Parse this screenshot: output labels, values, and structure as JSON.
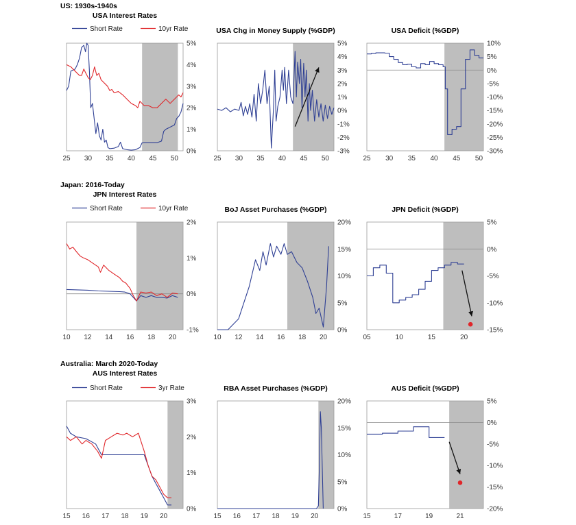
{
  "colors": {
    "short": "#2e3f94",
    "long": "#e0262a",
    "shade": "#bebebe",
    "frame": "#9a9a9a",
    "arrow": "#111111",
    "dot": "#e0262a"
  },
  "sections": [
    {
      "title": "US: 1930s-1940s"
    },
    {
      "title": "Japan: 2016-Today"
    },
    {
      "title": "Australia: March 2020-Today"
    }
  ],
  "chart_data": [
    {
      "type": "line",
      "title": "USA Interest Rates",
      "xlim": [
        25,
        52
      ],
      "ylim": [
        0,
        5
      ],
      "xticks": [
        25,
        30,
        35,
        40,
        45,
        50
      ],
      "xtick_labels": [
        "25",
        "30",
        "35",
        "40",
        "45",
        "50"
      ],
      "yticks": [
        0,
        1,
        2,
        3,
        4,
        5
      ],
      "ytick_labels": [
        "0%",
        "1%",
        "2%",
        "3%",
        "4%",
        "5%"
      ],
      "shade": [
        42.5,
        50.8
      ],
      "series": [
        {
          "name": "Short Rate",
          "color": "short",
          "x": [
            25,
            25.5,
            26,
            27,
            27.5,
            28,
            28.5,
            29,
            29.4,
            29.7,
            30,
            30.3,
            30.6,
            31,
            31.4,
            31.8,
            32.2,
            32.6,
            33,
            33.4,
            33.8,
            34.2,
            34.6,
            35,
            36,
            37,
            37.5,
            38,
            39,
            40,
            41,
            42,
            42.5,
            43,
            44,
            45,
            46,
            47,
            47.5,
            48,
            49,
            50,
            50.5,
            51,
            51.5,
            52
          ],
          "y": [
            2.8,
            3.0,
            3.7,
            3.8,
            4.0,
            4.3,
            4.8,
            4.9,
            4.6,
            5.0,
            4.9,
            3.7,
            2.0,
            2.2,
            1.5,
            0.8,
            1.3,
            0.7,
            0.5,
            1.0,
            0.4,
            0.5,
            0.15,
            0.1,
            0.12,
            0.2,
            0.4,
            0.1,
            0.05,
            0.03,
            0.05,
            0.15,
            0.37,
            0.38,
            0.38,
            0.38,
            0.38,
            0.45,
            0.9,
            1.0,
            1.1,
            1.2,
            1.5,
            1.6,
            1.8,
            2.2
          ]
        },
        {
          "name": "10yr Rate",
          "color": "long",
          "x": [
            25,
            26,
            27,
            28,
            28.5,
            29,
            29.5,
            30,
            30.5,
            31,
            31.5,
            32,
            32.5,
            33,
            33.5,
            34,
            34.5,
            35,
            35.5,
            36,
            37,
            38,
            39,
            40,
            41,
            41.5,
            42,
            43,
            44,
            45,
            46,
            47,
            48,
            49,
            50,
            50.5,
            51,
            51.5,
            52
          ],
          "y": [
            4.0,
            3.9,
            3.7,
            3.5,
            3.5,
            3.8,
            3.6,
            3.4,
            3.3,
            3.5,
            3.9,
            3.5,
            3.6,
            3.3,
            3.2,
            3.1,
            3.0,
            2.8,
            2.85,
            2.7,
            2.75,
            2.6,
            2.4,
            2.2,
            2.1,
            2.0,
            2.3,
            2.1,
            2.1,
            2.0,
            2.0,
            2.2,
            2.4,
            2.2,
            2.4,
            2.5,
            2.6,
            2.5,
            2.7
          ]
        }
      ]
    },
    {
      "type": "line",
      "title": "USA Chg in Money Supply (%GDP)",
      "xlim": [
        25,
        52
      ],
      "ylim": [
        -3,
        5
      ],
      "xticks": [
        25,
        30,
        35,
        40,
        45,
        50
      ],
      "xtick_labels": [
        "25",
        "30",
        "35",
        "40",
        "45",
        "50"
      ],
      "yticks": [
        -3,
        -2,
        -1,
        0,
        1,
        2,
        3,
        4,
        5
      ],
      "ytick_labels": [
        "-3%",
        "-2%",
        "-1%",
        "0%",
        "1%",
        "2%",
        "3%",
        "4%",
        "5%"
      ],
      "shade": [
        42.5,
        52
      ],
      "series": [
        {
          "name": "",
          "color": "short",
          "x": [
            25,
            26,
            27,
            28,
            29,
            30,
            30.5,
            31,
            31.5,
            32,
            32.5,
            33,
            33.5,
            34,
            34.5,
            35,
            35.5,
            36,
            36.5,
            37,
            37.5,
            38,
            38.3,
            38.6,
            39,
            39.5,
            40,
            40.3,
            40.6,
            41,
            41.5,
            42,
            42.5,
            43,
            43.3,
            43.6,
            44,
            44.3,
            44.6,
            45,
            45.3,
            45.6,
            46,
            46.3,
            46.6,
            47,
            47.5,
            48,
            48.5,
            49,
            49.5,
            50,
            50.5,
            51,
            51.5,
            52
          ],
          "y": [
            0.1,
            0.0,
            0.2,
            -0.1,
            0.1,
            0.0,
            0.6,
            -0.4,
            0.3,
            -0.3,
            0.5,
            -0.5,
            1.2,
            -0.8,
            2.0,
            0.5,
            1.5,
            3.0,
            0.5,
            1.8,
            -2.8,
            0.2,
            3.0,
            -0.8,
            0.3,
            1.0,
            3.0,
            1.5,
            3.2,
            0.5,
            3.0,
            1.0,
            0.5,
            4.4,
            1.0,
            3.6,
            2.0,
            3.8,
            0.2,
            3.5,
            1.0,
            3.0,
            -0.8,
            2.0,
            0.0,
            1.5,
            -0.8,
            0.8,
            -0.5,
            0.5,
            -0.8,
            0.4,
            -0.6,
            0.3,
            -0.3,
            0.2
          ]
        }
      ],
      "arrow": {
        "from": [
          43,
          -1.2
        ],
        "to": [
          48.5,
          3.2
        ]
      }
    },
    {
      "type": "line",
      "title": "USA Deficit (%GDP)",
      "xlim": [
        25,
        51
      ],
      "ylim": [
        -30,
        10
      ],
      "xticks": [
        25,
        30,
        35,
        40,
        45,
        50
      ],
      "xtick_labels": [
        "25",
        "30",
        "35",
        "40",
        "45",
        "50"
      ],
      "yticks": [
        -30,
        -25,
        -20,
        -15,
        -10,
        -5,
        0,
        5,
        10
      ],
      "ytick_labels": [
        "-30%",
        "-25%",
        "-20%",
        "-15%",
        "-10%",
        "-5%",
        "0%",
        "5%",
        "10%"
      ],
      "zero_line": true,
      "shade": [
        42.3,
        51
      ],
      "series": [
        {
          "name": "",
          "color": "short",
          "step": true,
          "x": [
            25,
            26,
            27,
            28,
            29,
            30,
            31,
            32,
            33,
            34,
            35,
            36,
            37,
            38,
            39,
            40,
            41,
            42,
            42.5,
            43,
            44,
            45,
            46,
            47,
            48,
            49,
            50,
            51
          ],
          "y": [
            6,
            6.2,
            6.4,
            6.4,
            6.3,
            5.0,
            4.0,
            2.8,
            2.0,
            2.2,
            1.2,
            0.8,
            2.4,
            2.0,
            3.2,
            2.4,
            2.0,
            1.2,
            -7.0,
            -24.0,
            -22.0,
            -21.0,
            -7.0,
            4.0,
            7.5,
            5.5,
            4.5,
            4.5
          ]
        }
      ]
    },
    {
      "type": "line",
      "title": "JPN Interest Rates",
      "xlim": [
        10,
        21
      ],
      "ylim": [
        -1,
        2
      ],
      "xticks": [
        10,
        12,
        14,
        16,
        18,
        20
      ],
      "xtick_labels": [
        "10",
        "12",
        "14",
        "16",
        "18",
        "20"
      ],
      "yticks": [
        -1,
        0,
        1,
        2
      ],
      "ytick_labels": [
        "-1%",
        "0%",
        "1%",
        "2%"
      ],
      "zero_line": true,
      "shade": [
        16.6,
        21
      ],
      "series": [
        {
          "name": "Short Rate",
          "color": "short",
          "x": [
            10,
            11,
            12,
            13,
            14,
            15,
            15.5,
            16,
            16.3,
            16.6,
            17,
            17.5,
            18,
            18.5,
            19,
            19.5,
            20,
            20.5
          ],
          "y": [
            0.12,
            0.11,
            0.1,
            0.08,
            0.07,
            0.06,
            0.05,
            0.0,
            -0.1,
            -0.2,
            -0.05,
            -0.1,
            -0.05,
            -0.1,
            -0.1,
            -0.12,
            -0.05,
            -0.1
          ]
        },
        {
          "name": "10yr Rate",
          "color": "long",
          "x": [
            10,
            10.3,
            10.6,
            11,
            11.3,
            11.6,
            12,
            12.5,
            13,
            13.2,
            13.5,
            14,
            14.5,
            15,
            15.3,
            15.6,
            16,
            16.3,
            16.6,
            17,
            17.5,
            18,
            18.5,
            19,
            19.5,
            20,
            20.5
          ],
          "y": [
            1.4,
            1.25,
            1.3,
            1.15,
            1.05,
            1.0,
            0.95,
            0.85,
            0.75,
            0.6,
            0.8,
            0.65,
            0.55,
            0.45,
            0.35,
            0.3,
            0.15,
            -0.05,
            -0.2,
            0.05,
            0.02,
            0.05,
            -0.05,
            0.0,
            -0.1,
            0.02,
            0.0
          ]
        }
      ]
    },
    {
      "type": "line",
      "title": "BoJ Asset Purchases (%GDP)",
      "xlim": [
        10,
        21
      ],
      "ylim": [
        0,
        20
      ],
      "xticks": [
        10,
        12,
        14,
        16,
        18,
        20
      ],
      "xtick_labels": [
        "10",
        "12",
        "14",
        "16",
        "18",
        "20"
      ],
      "yticks": [
        0,
        5,
        10,
        15,
        20
      ],
      "ytick_labels": [
        "0%",
        "5%",
        "10%",
        "15%",
        "20%"
      ],
      "shade": [
        16.6,
        21
      ],
      "series": [
        {
          "name": "",
          "color": "short",
          "x": [
            10,
            11,
            11.5,
            12,
            12.5,
            13,
            13.3,
            13.6,
            14,
            14.3,
            14.6,
            15,
            15.3,
            15.6,
            16,
            16.3,
            16.6,
            17,
            17.5,
            18,
            18.5,
            19,
            19.3,
            19.6,
            20,
            20.3,
            20.5
          ],
          "y": [
            0,
            0,
            1.0,
            2.0,
            5.0,
            8.0,
            10.5,
            13.0,
            11.0,
            14.5,
            12.0,
            16.0,
            13.5,
            15.5,
            14.0,
            16.0,
            14.0,
            14.5,
            12.5,
            11.5,
            9.0,
            6.0,
            3.0,
            4.0,
            0.5,
            8.0,
            15.5
          ]
        }
      ]
    },
    {
      "type": "line",
      "title": "JPN Deficit (%GDP)",
      "xlim": [
        5,
        23
      ],
      "ylim": [
        -15,
        5
      ],
      "xticks": [
        5,
        10,
        15,
        20
      ],
      "xtick_labels": [
        "05",
        "10",
        "15",
        "20"
      ],
      "yticks": [
        -15,
        -10,
        -5,
        0,
        5
      ],
      "ytick_labels": [
        "-15%",
        "-10%",
        "-5%",
        "0%",
        "5%"
      ],
      "zero_line": true,
      "shade": [
        16.8,
        23
      ],
      "series": [
        {
          "name": "",
          "color": "short",
          "step": true,
          "x": [
            5,
            6,
            7,
            8,
            9,
            10,
            11,
            12,
            13,
            14,
            15,
            16,
            17,
            18,
            19,
            20
          ],
          "y": [
            -5.0,
            -3.5,
            -3.0,
            -4.5,
            -10.0,
            -9.5,
            -9.0,
            -8.5,
            -7.5,
            -6.0,
            -4.0,
            -3.5,
            -3.0,
            -2.5,
            -2.8,
            -2.8
          ]
        }
      ],
      "arrow": {
        "from": [
          19.7,
          -4.0
        ],
        "to": [
          21.2,
          -12.5
        ]
      },
      "point": {
        "x": 21,
        "y": -14
      }
    },
    {
      "type": "line",
      "title": "AUS Interest Rates",
      "xlim": [
        15,
        21
      ],
      "ylim": [
        0,
        3
      ],
      "xticks": [
        15,
        16,
        17,
        18,
        19,
        20
      ],
      "xtick_labels": [
        "15",
        "16",
        "17",
        "18",
        "19",
        "20"
      ],
      "yticks": [
        0,
        1,
        2,
        3
      ],
      "ytick_labels": [
        "0%",
        "1%",
        "2%",
        "3%"
      ],
      "shade": [
        20.2,
        21
      ],
      "series": [
        {
          "name": "Short Rate",
          "color": "short",
          "x": [
            15,
            15.2,
            15.5,
            16,
            16.5,
            16.8,
            17,
            17.5,
            18,
            18.5,
            19,
            19.2,
            19.4,
            19.6,
            19.8,
            20,
            20.2,
            20.4
          ],
          "y": [
            2.3,
            2.1,
            2.0,
            1.95,
            1.8,
            1.5,
            1.5,
            1.5,
            1.5,
            1.5,
            1.5,
            1.2,
            0.9,
            0.7,
            0.5,
            0.3,
            0.1,
            0.1
          ]
        },
        {
          "name": "3yr Rate",
          "color": "long",
          "x": [
            15,
            15.2,
            15.5,
            15.8,
            16,
            16.3,
            16.6,
            16.8,
            17,
            17.3,
            17.6,
            17.9,
            18.1,
            18.4,
            18.7,
            19,
            19.2,
            19.4,
            19.6,
            19.8,
            20,
            20.2,
            20.4
          ],
          "y": [
            2.0,
            1.9,
            2.0,
            1.8,
            1.9,
            1.8,
            1.6,
            1.4,
            1.9,
            2.0,
            2.1,
            2.05,
            2.1,
            2.0,
            2.1,
            1.6,
            1.2,
            0.9,
            0.8,
            0.6,
            0.4,
            0.3,
            0.3
          ]
        }
      ]
    },
    {
      "type": "line",
      "title": "RBA Asset Purchases (%GDP)",
      "xlim": [
        15,
        21
      ],
      "ylim": [
        0,
        20
      ],
      "xticks": [
        15,
        16,
        17,
        18,
        19,
        20
      ],
      "xtick_labels": [
        "15",
        "16",
        "17",
        "18",
        "19",
        "20"
      ],
      "yticks": [
        0,
        5,
        10,
        15,
        20
      ],
      "ytick_labels": [
        "0%",
        "5%",
        "10%",
        "15%",
        "20%"
      ],
      "shade": [
        20.2,
        21
      ],
      "series": [
        {
          "name": "",
          "color": "short",
          "x": [
            15,
            20.0,
            20.1,
            20.2,
            20.25,
            20.3,
            20.35,
            20.45
          ],
          "y": [
            0,
            0,
            0,
            0.5,
            8.0,
            18.0,
            15.0,
            0
          ]
        }
      ]
    },
    {
      "type": "line",
      "title": "AUS Deficit (%GDP)",
      "xlim": [
        15,
        22.5
      ],
      "ylim": [
        -20,
        5
      ],
      "xticks": [
        15,
        17,
        19,
        21
      ],
      "xtick_labels": [
        "15",
        "17",
        "19",
        "21"
      ],
      "yticks": [
        -20,
        -15,
        -10,
        -5,
        0,
        5
      ],
      "ytick_labels": [
        "-20%",
        "-15%",
        "-10%",
        "-5%",
        "0%",
        "5%"
      ],
      "zero_line": true,
      "shade": [
        20.3,
        22.5
      ],
      "series": [
        {
          "name": "",
          "color": "short",
          "step": true,
          "x": [
            15,
            16,
            17,
            18,
            19,
            20
          ],
          "y": [
            -2.7,
            -2.5,
            -2.0,
            -1.0,
            -3.5,
            -3.5
          ]
        }
      ],
      "arrow": {
        "from": [
          20.3,
          -4.5
        ],
        "to": [
          21.0,
          -12.0
        ]
      },
      "point": {
        "x": 21,
        "y": -14
      }
    }
  ]
}
